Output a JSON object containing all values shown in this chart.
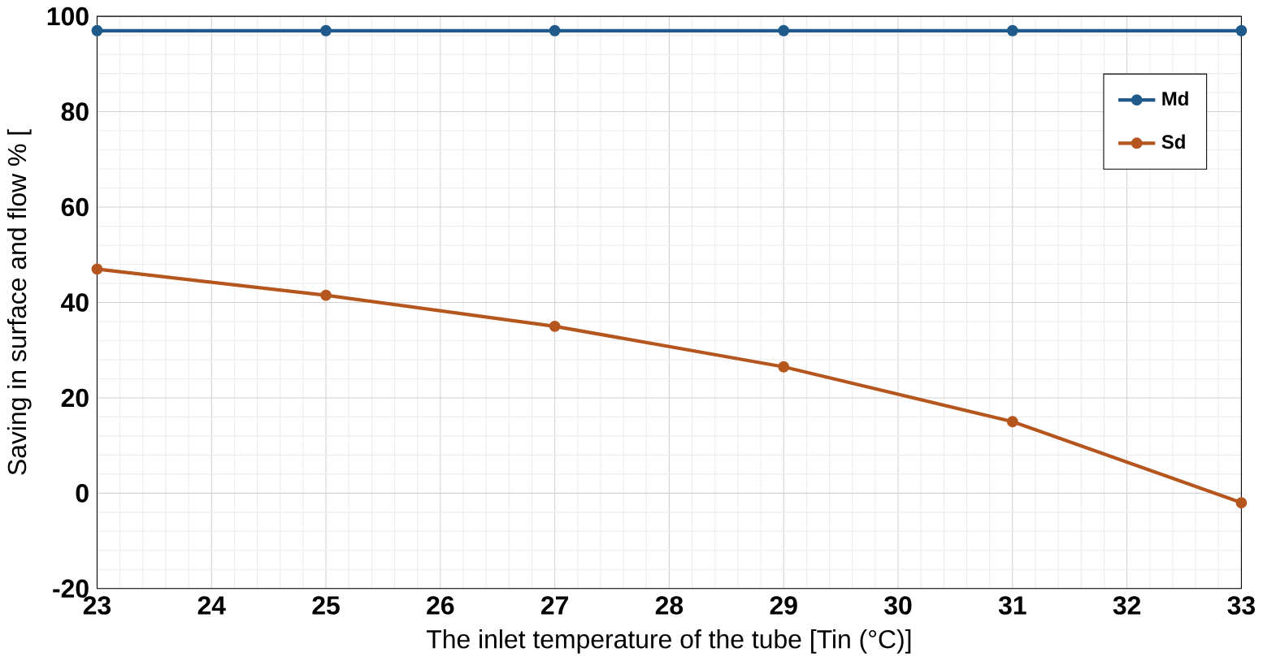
{
  "chart_data": {
    "type": "line",
    "xlabel": "The inlet temperature of the tube [Tin (°C)]",
    "ylabel": "Saving in surface and flow % [",
    "x": [
      23,
      25,
      27,
      29,
      31,
      33
    ],
    "series": [
      {
        "name": "Md",
        "color": "#1f5a8a",
        "values": [
          97,
          97,
          97,
          97,
          97,
          97
        ]
      },
      {
        "name": "Sd",
        "color": "#b5561e",
        "values": [
          47,
          41.5,
          35,
          26.5,
          15,
          -2
        ]
      }
    ],
    "xlim": [
      23,
      33
    ],
    "ylim": [
      -20,
      100
    ],
    "xticks": [
      23,
      24,
      25,
      26,
      27,
      28,
      29,
      30,
      31,
      32,
      33
    ],
    "yticks": [
      -20,
      0,
      20,
      40,
      60,
      80,
      100
    ],
    "grid": true,
    "legend": "top right",
    "marker": "circle",
    "line_style": "solid"
  }
}
